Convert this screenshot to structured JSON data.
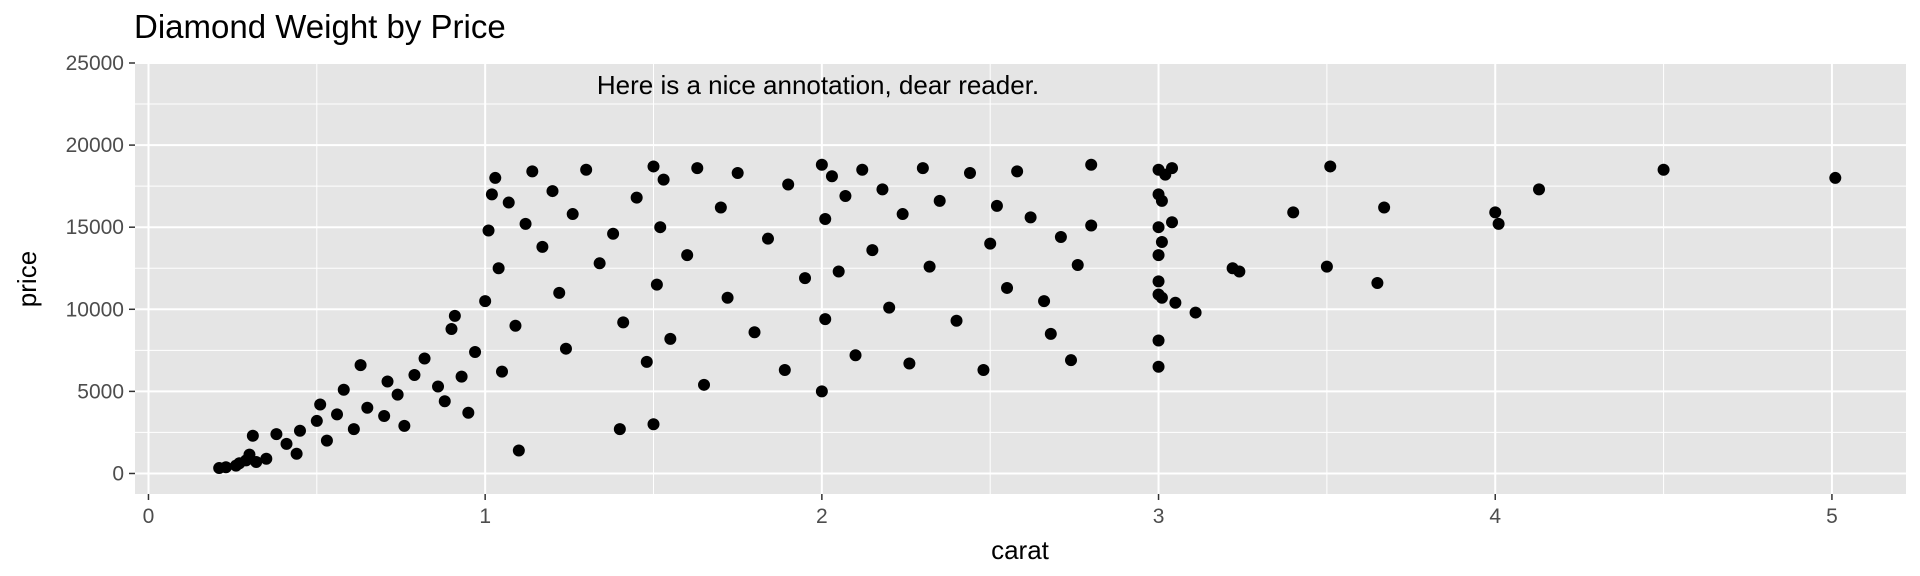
{
  "chart_data": {
    "type": "scatter",
    "title": "Diamond Weight by Price",
    "xlabel": "carat",
    "ylabel": "price",
    "xlim": [
      -0.04,
      5.22
    ],
    "ylim": [
      -1250,
      25000
    ],
    "x_ticks": [
      0,
      1,
      2,
      3,
      4,
      5
    ],
    "y_ticks": [
      0,
      5000,
      10000,
      15000,
      20000,
      25000
    ],
    "x_tick_labels": [
      "0",
      "1",
      "2",
      "3",
      "4",
      "5"
    ],
    "y_tick_labels": [
      "0",
      "5000",
      "10000",
      "15000",
      "20000",
      "25000"
    ],
    "grid": true,
    "legend": "none",
    "colors": {
      "panel": "#e5e5e5",
      "grid": "#ffffff",
      "point": "#000000"
    },
    "annotation": {
      "text": "Here is a nice annotation, dear reader.",
      "x": 2,
      "y": 24000
    },
    "series": [
      {
        "values": [
          [
            0.21,
            330
          ],
          [
            0.23,
            380
          ],
          [
            0.26,
            480
          ],
          [
            0.27,
            620
          ],
          [
            0.29,
            800
          ],
          [
            0.3,
            1150
          ],
          [
            0.31,
            2300
          ],
          [
            0.32,
            700
          ],
          [
            0.35,
            900
          ],
          [
            0.38,
            2400
          ],
          [
            0.41,
            1800
          ],
          [
            0.44,
            1200
          ],
          [
            0.45,
            2600
          ],
          [
            0.5,
            3200
          ],
          [
            0.51,
            4200
          ],
          [
            0.53,
            2000
          ],
          [
            0.56,
            3600
          ],
          [
            0.58,
            5100
          ],
          [
            0.61,
            2700
          ],
          [
            0.63,
            6600
          ],
          [
            0.65,
            4000
          ],
          [
            0.7,
            3500
          ],
          [
            0.71,
            5600
          ],
          [
            0.74,
            4800
          ],
          [
            0.76,
            2900
          ],
          [
            0.79,
            6000
          ],
          [
            0.82,
            7000
          ],
          [
            0.86,
            5300
          ],
          [
            0.88,
            4400
          ],
          [
            0.9,
            8800
          ],
          [
            0.91,
            9600
          ],
          [
            0.93,
            5900
          ],
          [
            0.95,
            3700
          ],
          [
            0.97,
            7400
          ],
          [
            1.0,
            10500
          ],
          [
            1.01,
            14800
          ],
          [
            1.02,
            17000
          ],
          [
            1.03,
            18000
          ],
          [
            1.04,
            12500
          ],
          [
            1.05,
            6200
          ],
          [
            1.07,
            16500
          ],
          [
            1.09,
            9000
          ],
          [
            1.1,
            1400
          ],
          [
            1.12,
            15200
          ],
          [
            1.14,
            18400
          ],
          [
            1.17,
            13800
          ],
          [
            1.2,
            17200
          ],
          [
            1.22,
            11000
          ],
          [
            1.24,
            7600
          ],
          [
            1.26,
            15800
          ],
          [
            1.3,
            18500
          ],
          [
            1.34,
            12800
          ],
          [
            1.38,
            14600
          ],
          [
            1.4,
            2700
          ],
          [
            1.41,
            9200
          ],
          [
            1.45,
            16800
          ],
          [
            1.48,
            6800
          ],
          [
            1.5,
            18700
          ],
          [
            1.5,
            3000
          ],
          [
            1.51,
            11500
          ],
          [
            1.52,
            15000
          ],
          [
            1.53,
            17900
          ],
          [
            1.55,
            8200
          ],
          [
            1.6,
            13300
          ],
          [
            1.63,
            18600
          ],
          [
            1.65,
            5400
          ],
          [
            1.7,
            16200
          ],
          [
            1.72,
            10700
          ],
          [
            1.75,
            18300
          ],
          [
            1.8,
            8600
          ],
          [
            1.84,
            14300
          ],
          [
            1.89,
            6300
          ],
          [
            1.9,
            17600
          ],
          [
            1.95,
            11900
          ],
          [
            2.0,
            18800
          ],
          [
            2.0,
            5000
          ],
          [
            2.01,
            15500
          ],
          [
            2.01,
            9400
          ],
          [
            2.03,
            18100
          ],
          [
            2.05,
            12300
          ],
          [
            2.07,
            16900
          ],
          [
            2.1,
            7200
          ],
          [
            2.12,
            18500
          ],
          [
            2.15,
            13600
          ],
          [
            2.18,
            17300
          ],
          [
            2.2,
            10100
          ],
          [
            2.24,
            15800
          ],
          [
            2.26,
            6700
          ],
          [
            2.3,
            18600
          ],
          [
            2.32,
            12600
          ],
          [
            2.35,
            16600
          ],
          [
            2.4,
            9300
          ],
          [
            2.44,
            18300
          ],
          [
            2.48,
            6300
          ],
          [
            2.5,
            14000
          ],
          [
            2.52,
            16300
          ],
          [
            2.55,
            11300
          ],
          [
            2.58,
            18400
          ],
          [
            2.62,
            15600
          ],
          [
            2.66,
            10500
          ],
          [
            2.68,
            8500
          ],
          [
            2.71,
            14400
          ],
          [
            2.74,
            6900
          ],
          [
            2.76,
            12700
          ],
          [
            2.8,
            18800
          ],
          [
            2.8,
            15100
          ],
          [
            3.0,
            18500
          ],
          [
            3.0,
            17000
          ],
          [
            3.0,
            15000
          ],
          [
            3.0,
            13300
          ],
          [
            3.0,
            11700
          ],
          [
            3.0,
            10900
          ],
          [
            3.0,
            8100
          ],
          [
            3.0,
            6500
          ],
          [
            3.01,
            16600
          ],
          [
            3.01,
            14100
          ],
          [
            3.01,
            10700
          ],
          [
            3.02,
            18200
          ],
          [
            3.04,
            18600
          ],
          [
            3.04,
            15300
          ],
          [
            3.05,
            10400
          ],
          [
            3.11,
            9800
          ],
          [
            3.22,
            12500
          ],
          [
            3.24,
            12300
          ],
          [
            3.4,
            15900
          ],
          [
            3.5,
            12600
          ],
          [
            3.51,
            18700
          ],
          [
            3.65,
            11600
          ],
          [
            3.67,
            16200
          ],
          [
            4.0,
            15900
          ],
          [
            4.01,
            15200
          ],
          [
            4.13,
            17300
          ],
          [
            4.5,
            18500
          ],
          [
            5.01,
            18000
          ]
        ]
      }
    ]
  }
}
